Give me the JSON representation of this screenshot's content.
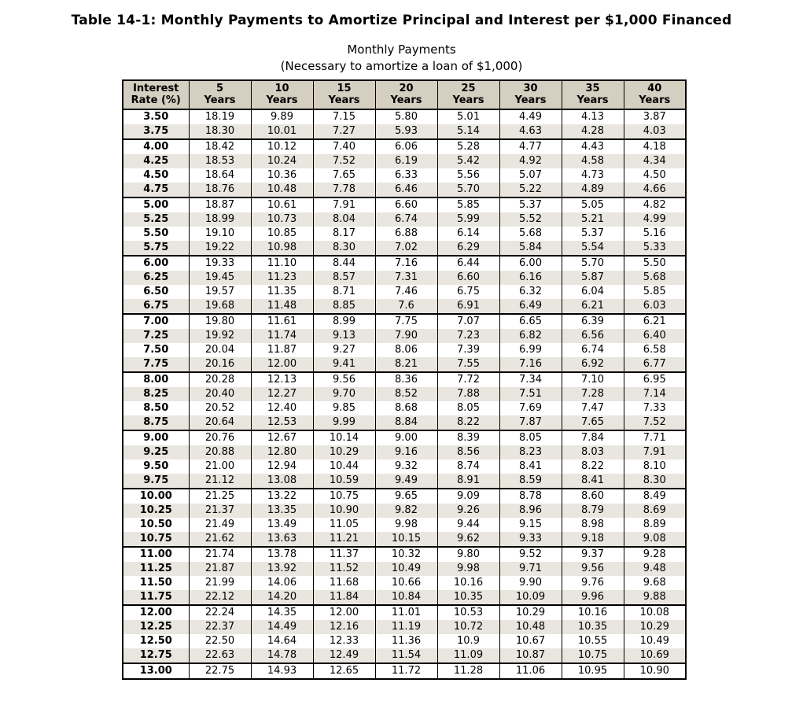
{
  "title": "Table 14-1: Monthly Payments to Amortize Principal and Interest per $1,000 Financed",
  "subtitle": {
    "line1": "Monthly Payments",
    "line2": "(Necessary to amortize a loan of $1,000)"
  },
  "colors": {
    "header_bg": "#d5cfc2",
    "row_alt_bg": "#e9e6df",
    "border": "#000000",
    "text": "#000000"
  },
  "table": {
    "columns": [
      {
        "line1": "Interest",
        "line2": "Rate (%)"
      },
      {
        "line1": "5",
        "line2": "Years"
      },
      {
        "line1": "10",
        "line2": "Years"
      },
      {
        "line1": "15",
        "line2": "Years"
      },
      {
        "line1": "20",
        "line2": "Years"
      },
      {
        "line1": "25",
        "line2": "Years"
      },
      {
        "line1": "30",
        "line2": "Years"
      },
      {
        "line1": "35",
        "line2": "Years"
      },
      {
        "line1": "40",
        "line2": "Years"
      }
    ],
    "rows": [
      {
        "rate": "3.50",
        "values": [
          "18.19",
          "9.89",
          "7.15",
          "5.80",
          "5.01",
          "4.49",
          "4.13",
          "3.87"
        ]
      },
      {
        "rate": "3.75",
        "values": [
          "18.30",
          "10.01",
          "7.27",
          "5.93",
          "5.14",
          "4.63",
          "4.28",
          "4.03"
        ]
      },
      {
        "rate": "4.00",
        "values": [
          "18.42",
          "10.12",
          "7.40",
          "6.06",
          "5.28",
          "4.77",
          "4.43",
          "4.18"
        ]
      },
      {
        "rate": "4.25",
        "values": [
          "18.53",
          "10.24",
          "7.52",
          "6.19",
          "5.42",
          "4.92",
          "4.58",
          "4.34"
        ]
      },
      {
        "rate": "4.50",
        "values": [
          "18.64",
          "10.36",
          "7.65",
          "6.33",
          "5.56",
          "5.07",
          "4.73",
          "4.50"
        ]
      },
      {
        "rate": "4.75",
        "values": [
          "18.76",
          "10.48",
          "7.78",
          "6.46",
          "5.70",
          "5.22",
          "4.89",
          "4.66"
        ]
      },
      {
        "rate": "5.00",
        "values": [
          "18.87",
          "10.61",
          "7.91",
          "6.60",
          "5.85",
          "5.37",
          "5.05",
          "4.82"
        ]
      },
      {
        "rate": "5.25",
        "values": [
          "18.99",
          "10.73",
          "8.04",
          "6.74",
          "5.99",
          "5.52",
          "5.21",
          "4.99"
        ]
      },
      {
        "rate": "5.50",
        "values": [
          "19.10",
          "10.85",
          "8.17",
          "6.88",
          "6.14",
          "5.68",
          "5.37",
          "5.16"
        ]
      },
      {
        "rate": "5.75",
        "values": [
          "19.22",
          "10.98",
          "8.30",
          "7.02",
          "6.29",
          "5.84",
          "5.54",
          "5.33"
        ]
      },
      {
        "rate": "6.00",
        "values": [
          "19.33",
          "11.10",
          "8.44",
          "7.16",
          "6.44",
          "6.00",
          "5.70",
          "5.50"
        ]
      },
      {
        "rate": "6.25",
        "values": [
          "19.45",
          "11.23",
          "8.57",
          "7.31",
          "6.60",
          "6.16",
          "5.87",
          "5.68"
        ]
      },
      {
        "rate": "6.50",
        "values": [
          "19.57",
          "11.35",
          "8.71",
          "7.46",
          "6.75",
          "6.32",
          "6.04",
          "5.85"
        ]
      },
      {
        "rate": "6.75",
        "values": [
          "19.68",
          "11.48",
          "8.85",
          "7.6",
          "6.91",
          "6.49",
          "6.21",
          "6.03"
        ]
      },
      {
        "rate": "7.00",
        "values": [
          "19.80",
          "11.61",
          "8.99",
          "7.75",
          "7.07",
          "6.65",
          "6.39",
          "6.21"
        ]
      },
      {
        "rate": "7.25",
        "values": [
          "19.92",
          "11.74",
          "9.13",
          "7.90",
          "7.23",
          "6.82",
          "6.56",
          "6.40"
        ]
      },
      {
        "rate": "7.50",
        "values": [
          "20.04",
          "11.87",
          "9.27",
          "8.06",
          "7.39",
          "6.99",
          "6.74",
          "6.58"
        ]
      },
      {
        "rate": "7.75",
        "values": [
          "20.16",
          "12.00",
          "9.41",
          "8.21",
          "7.55",
          "7.16",
          "6.92",
          "6.77"
        ]
      },
      {
        "rate": "8.00",
        "values": [
          "20.28",
          "12.13",
          "9.56",
          "8.36",
          "7.72",
          "7.34",
          "7.10",
          "6.95"
        ]
      },
      {
        "rate": "8.25",
        "values": [
          "20.40",
          "12.27",
          "9.70",
          "8.52",
          "7.88",
          "7.51",
          "7.28",
          "7.14"
        ]
      },
      {
        "rate": "8.50",
        "values": [
          "20.52",
          "12.40",
          "9.85",
          "8.68",
          "8.05",
          "7.69",
          "7.47",
          "7.33"
        ]
      },
      {
        "rate": "8.75",
        "values": [
          "20.64",
          "12.53",
          "9.99",
          "8.84",
          "8.22",
          "7.87",
          "7.65",
          "7.52"
        ]
      },
      {
        "rate": "9.00",
        "values": [
          "20.76",
          "12.67",
          "10.14",
          "9.00",
          "8.39",
          "8.05",
          "7.84",
          "7.71"
        ]
      },
      {
        "rate": "9.25",
        "values": [
          "20.88",
          "12.80",
          "10.29",
          "9.16",
          "8.56",
          "8.23",
          "8.03",
          "7.91"
        ]
      },
      {
        "rate": "9.50",
        "values": [
          "21.00",
          "12.94",
          "10.44",
          "9.32",
          "8.74",
          "8.41",
          "8.22",
          "8.10"
        ]
      },
      {
        "rate": "9.75",
        "values": [
          "21.12",
          "13.08",
          "10.59",
          "9.49",
          "8.91",
          "8.59",
          "8.41",
          "8.30"
        ]
      },
      {
        "rate": "10.00",
        "values": [
          "21.25",
          "13.22",
          "10.75",
          "9.65",
          "9.09",
          "8.78",
          "8.60",
          "8.49"
        ]
      },
      {
        "rate": "10.25",
        "values": [
          "21.37",
          "13.35",
          "10.90",
          "9.82",
          "9.26",
          "8.96",
          "8.79",
          "8.69"
        ]
      },
      {
        "rate": "10.50",
        "values": [
          "21.49",
          "13.49",
          "11.05",
          "9.98",
          "9.44",
          "9.15",
          "8.98",
          "8.89"
        ]
      },
      {
        "rate": "10.75",
        "values": [
          "21.62",
          "13.63",
          "11.21",
          "10.15",
          "9.62",
          "9.33",
          "9.18",
          "9.08"
        ]
      },
      {
        "rate": "11.00",
        "values": [
          "21.74",
          "13.78",
          "11.37",
          "10.32",
          "9.80",
          "9.52",
          "9.37",
          "9.28"
        ]
      },
      {
        "rate": "11.25",
        "values": [
          "21.87",
          "13.92",
          "11.52",
          "10.49",
          "9.98",
          "9.71",
          "9.56",
          "9.48"
        ]
      },
      {
        "rate": "11.50",
        "values": [
          "21.99",
          "14.06",
          "11.68",
          "10.66",
          "10.16",
          "9.90",
          "9.76",
          "9.68"
        ]
      },
      {
        "rate": "11.75",
        "values": [
          "22.12",
          "14.20",
          "11.84",
          "10.84",
          "10.35",
          "10.09",
          "9.96",
          "9.88"
        ]
      },
      {
        "rate": "12.00",
        "values": [
          "22.24",
          "14.35",
          "12.00",
          "11.01",
          "10.53",
          "10.29",
          "10.16",
          "10.08"
        ]
      },
      {
        "rate": "12.25",
        "values": [
          "22.37",
          "14.49",
          "12.16",
          "11.19",
          "10.72",
          "10.48",
          "10.35",
          "10.29"
        ]
      },
      {
        "rate": "12.50",
        "values": [
          "22.50",
          "14.64",
          "12.33",
          "11.36",
          "10.9",
          "10.67",
          "10.55",
          "10.49"
        ]
      },
      {
        "rate": "12.75",
        "values": [
          "22.63",
          "14.78",
          "12.49",
          "11.54",
          "11.09",
          "10.87",
          "10.75",
          "10.69"
        ]
      },
      {
        "rate": "13.00",
        "values": [
          "22.75",
          "14.93",
          "12.65",
          "11.72",
          "11.28",
          "11.06",
          "10.95",
          "10.90"
        ]
      }
    ]
  }
}
